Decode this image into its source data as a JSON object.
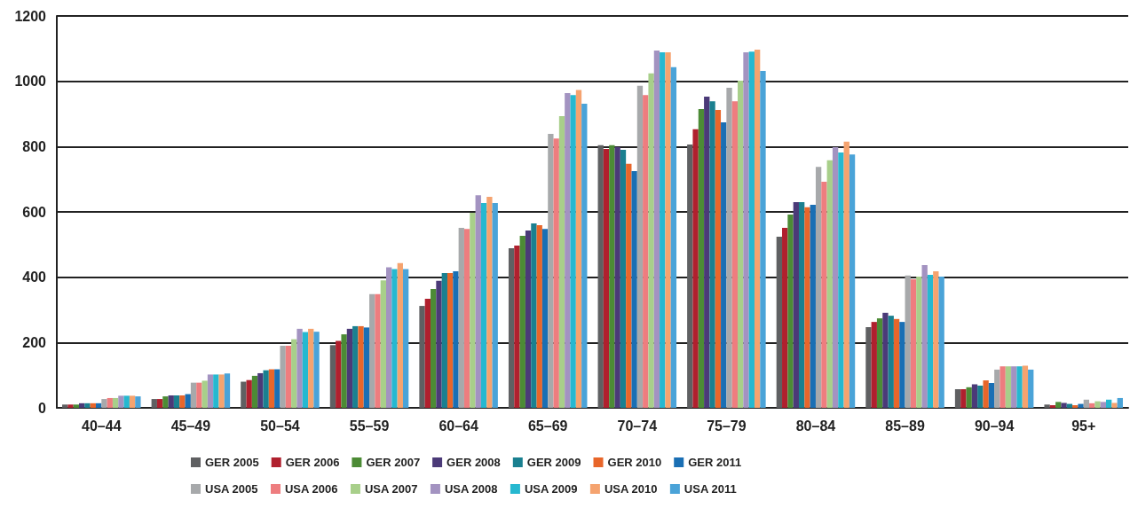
{
  "chart_data": {
    "type": "bar",
    "categories": [
      "40–44",
      "45–49",
      "50–54",
      "55–59",
      "60–64",
      "65–69",
      "70–74",
      "75–79",
      "80–84",
      "85–89",
      "90–94",
      "95+"
    ],
    "series": [
      {
        "name": "GER 2005",
        "color": "#5f6062",
        "values": [
          10,
          27,
          80,
          192,
          312,
          489,
          804,
          806,
          524,
          247,
          57,
          10
        ]
      },
      {
        "name": "GER 2006",
        "color": "#b0202e",
        "values": [
          10,
          27,
          85,
          205,
          334,
          497,
          793,
          853,
          551,
          263,
          57,
          8
        ]
      },
      {
        "name": "GER 2007",
        "color": "#4c8b35",
        "values": [
          10,
          35,
          98,
          225,
          364,
          527,
          804,
          915,
          592,
          274,
          63,
          18
        ]
      },
      {
        "name": "GER 2008",
        "color": "#4b3a78",
        "values": [
          14,
          38,
          106,
          242,
          389,
          543,
          798,
          953,
          630,
          291,
          72,
          15
        ]
      },
      {
        "name": "GER 2009",
        "color": "#1a8090",
        "values": [
          14,
          38,
          115,
          250,
          413,
          565,
          790,
          939,
          630,
          282,
          68,
          12
        ]
      },
      {
        "name": "GER 2010",
        "color": "#e8662a",
        "values": [
          14,
          38,
          118,
          250,
          413,
          559,
          747,
          912,
          614,
          272,
          84,
          8
        ]
      },
      {
        "name": "GER 2011",
        "color": "#1a6fb4",
        "values": [
          14,
          42,
          118,
          246,
          418,
          548,
          725,
          874,
          622,
          263,
          76,
          12
        ]
      },
      {
        "name": "USA 2005",
        "color": "#a7a9ab",
        "values": [
          27,
          77,
          190,
          348,
          551,
          839,
          986,
          980,
          738,
          405,
          117,
          25
        ]
      },
      {
        "name": "USA 2006",
        "color": "#ee7d7f",
        "values": [
          30,
          77,
          190,
          348,
          548,
          825,
          958,
          939,
          692,
          394,
          127,
          14
        ]
      },
      {
        "name": "USA 2007",
        "color": "#a8cf8a",
        "values": [
          30,
          83,
          210,
          390,
          597,
          893,
          1024,
          1002,
          758,
          402,
          127,
          20
        ]
      },
      {
        "name": "USA 2008",
        "color": "#a393c1",
        "values": [
          37,
          102,
          242,
          430,
          651,
          964,
          1094,
          1089,
          798,
          437,
          127,
          18
        ]
      },
      {
        "name": "USA 2009",
        "color": "#26b8d0",
        "values": [
          37,
          102,
          232,
          425,
          627,
          958,
          1089,
          1091,
          782,
          407,
          127,
          25
        ]
      },
      {
        "name": "USA 2010",
        "color": "#f5a36f",
        "values": [
          37,
          102,
          242,
          443,
          646,
          973,
          1089,
          1097,
          815,
          418,
          129,
          15
        ]
      },
      {
        "name": "USA 2011",
        "color": "#4aa3d8",
        "values": [
          35,
          105,
          233,
          425,
          627,
          931,
          1043,
          1032,
          776,
          402,
          117,
          30
        ]
      }
    ],
    "ylim": [
      0,
      1200
    ],
    "yticks": [
      0,
      200,
      400,
      600,
      800,
      1000,
      1200
    ],
    "grid": "y",
    "legend": "bottom"
  }
}
